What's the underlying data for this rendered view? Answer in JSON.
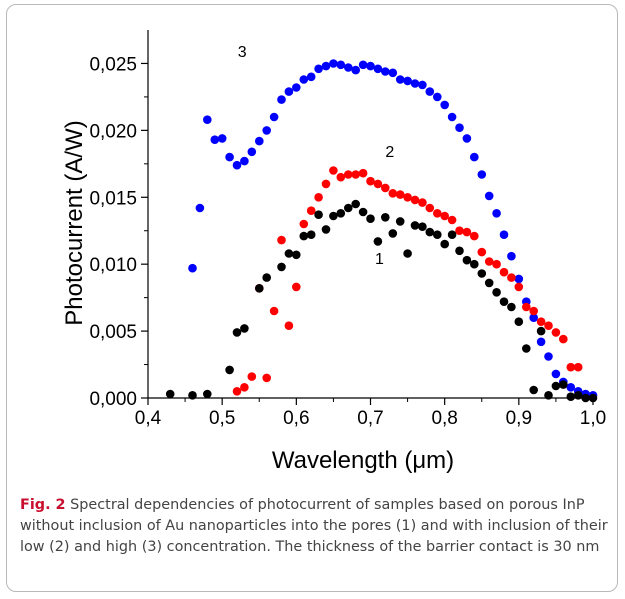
{
  "caption": {
    "label": "Fig. 2",
    "text": "Spectral dependencies of photocurrent of samples based on porous InP without inclusion of Au nanoparticles into the pores (1) and with inclusion of their low (2) and high (3) concentration. The thickness of the barrier contact is 30 nm"
  },
  "chart_data": {
    "type": "scatter",
    "xlabel": "Wavelength (μm)",
    "ylabel": "Photocurrent  (A/W)",
    "xlim": [
      0.4,
      1.0
    ],
    "ylim": [
      0.0,
      0.0275
    ],
    "xticks": [
      "0,4",
      "0,5",
      "0,6",
      "0,7",
      "0,8",
      "0,9",
      "1,0"
    ],
    "yticks": [
      "0,000",
      "0,005",
      "0,010",
      "0,015",
      "0,020",
      "0,025"
    ],
    "series": [
      {
        "name": "1",
        "color": "#000000",
        "x": [
          0.43,
          0.46,
          0.48,
          0.51,
          0.52,
          0.53,
          0.55,
          0.56,
          0.58,
          0.59,
          0.6,
          0.61,
          0.62,
          0.63,
          0.64,
          0.65,
          0.66,
          0.67,
          0.68,
          0.69,
          0.7,
          0.71,
          0.72,
          0.73,
          0.74,
          0.75,
          0.76,
          0.77,
          0.78,
          0.79,
          0.8,
          0.81,
          0.82,
          0.83,
          0.84,
          0.85,
          0.86,
          0.87,
          0.88,
          0.89,
          0.9,
          0.91,
          0.92,
          0.93,
          0.94,
          0.95,
          0.96,
          0.97,
          0.98,
          0.99,
          1.0
        ],
        "y": [
          0.0003,
          0.0002,
          0.0003,
          0.0021,
          0.0049,
          0.0052,
          0.0082,
          0.009,
          0.0098,
          0.0108,
          0.0107,
          0.0121,
          0.0122,
          0.0137,
          0.0126,
          0.0136,
          0.0138,
          0.0142,
          0.0145,
          0.0139,
          0.0134,
          0.0117,
          0.0135,
          0.0123,
          0.0132,
          0.0108,
          0.0129,
          0.0128,
          0.0124,
          0.0122,
          0.0115,
          0.0122,
          0.011,
          0.0103,
          0.01,
          0.0093,
          0.0086,
          0.0079,
          0.0072,
          0.0068,
          0.0057,
          0.0037,
          0.0006,
          0.005,
          0.0002,
          0.0009,
          0.001,
          0.0001,
          0.0002,
          0.0,
          0.0
        ]
      },
      {
        "name": "2",
        "color": "#ff0000",
        "x": [
          0.52,
          0.53,
          0.54,
          0.55,
          0.56,
          0.57,
          0.58,
          0.59,
          0.6,
          0.61,
          0.62,
          0.63,
          0.64,
          0.65,
          0.66,
          0.67,
          0.68,
          0.69,
          0.7,
          0.71,
          0.72,
          0.73,
          0.74,
          0.75,
          0.76,
          0.77,
          0.78,
          0.79,
          0.8,
          0.81,
          0.82,
          0.83,
          0.84,
          0.85,
          0.86,
          0.87,
          0.88,
          0.89,
          0.9,
          0.91,
          0.92,
          0.93,
          0.94,
          0.95,
          0.96,
          0.97,
          0.98
        ],
        "y": [
          0.0005,
          0.0008,
          0.0016,
          0.0082,
          0.0015,
          0.0065,
          0.0118,
          0.0054,
          0.0083,
          0.013,
          0.014,
          0.015,
          0.016,
          0.017,
          0.0165,
          0.0167,
          0.0167,
          0.0168,
          0.0162,
          0.016,
          0.0157,
          0.0153,
          0.0152,
          0.015,
          0.0148,
          0.0146,
          0.0142,
          0.0138,
          0.0136,
          0.0133,
          0.0125,
          0.0124,
          0.0121,
          0.0109,
          0.0102,
          0.01,
          0.0094,
          0.009,
          0.0083,
          0.0068,
          0.0065,
          0.0057,
          0.0054,
          0.0049,
          0.0044,
          0.0023,
          0.0023
        ]
      },
      {
        "name": "3",
        "color": "#0000ff",
        "x": [
          0.46,
          0.47,
          0.48,
          0.49,
          0.5,
          0.51,
          0.52,
          0.53,
          0.54,
          0.55,
          0.56,
          0.57,
          0.58,
          0.59,
          0.6,
          0.61,
          0.62,
          0.63,
          0.64,
          0.65,
          0.66,
          0.67,
          0.68,
          0.69,
          0.7,
          0.71,
          0.72,
          0.73,
          0.74,
          0.75,
          0.76,
          0.77,
          0.78,
          0.79,
          0.8,
          0.81,
          0.82,
          0.83,
          0.84,
          0.85,
          0.86,
          0.87,
          0.88,
          0.89,
          0.9,
          0.91,
          0.92,
          0.93,
          0.94,
          0.95,
          0.96,
          0.97,
          0.98,
          0.99,
          1.0
        ],
        "y": [
          0.0097,
          0.0142,
          0.0208,
          0.0193,
          0.0194,
          0.018,
          0.0174,
          0.0177,
          0.0184,
          0.0192,
          0.02,
          0.021,
          0.0223,
          0.0229,
          0.0232,
          0.0238,
          0.024,
          0.0246,
          0.0248,
          0.025,
          0.0249,
          0.0247,
          0.0245,
          0.0249,
          0.0248,
          0.0246,
          0.0244,
          0.0243,
          0.0238,
          0.0237,
          0.0235,
          0.0234,
          0.0229,
          0.0225,
          0.0219,
          0.021,
          0.0202,
          0.0194,
          0.018,
          0.0167,
          0.0151,
          0.0138,
          0.0122,
          0.0106,
          0.0089,
          0.0072,
          0.006,
          0.0042,
          0.0031,
          0.0018,
          0.0012,
          0.0008,
          0.0005,
          0.0003,
          0.0002
        ]
      }
    ]
  }
}
